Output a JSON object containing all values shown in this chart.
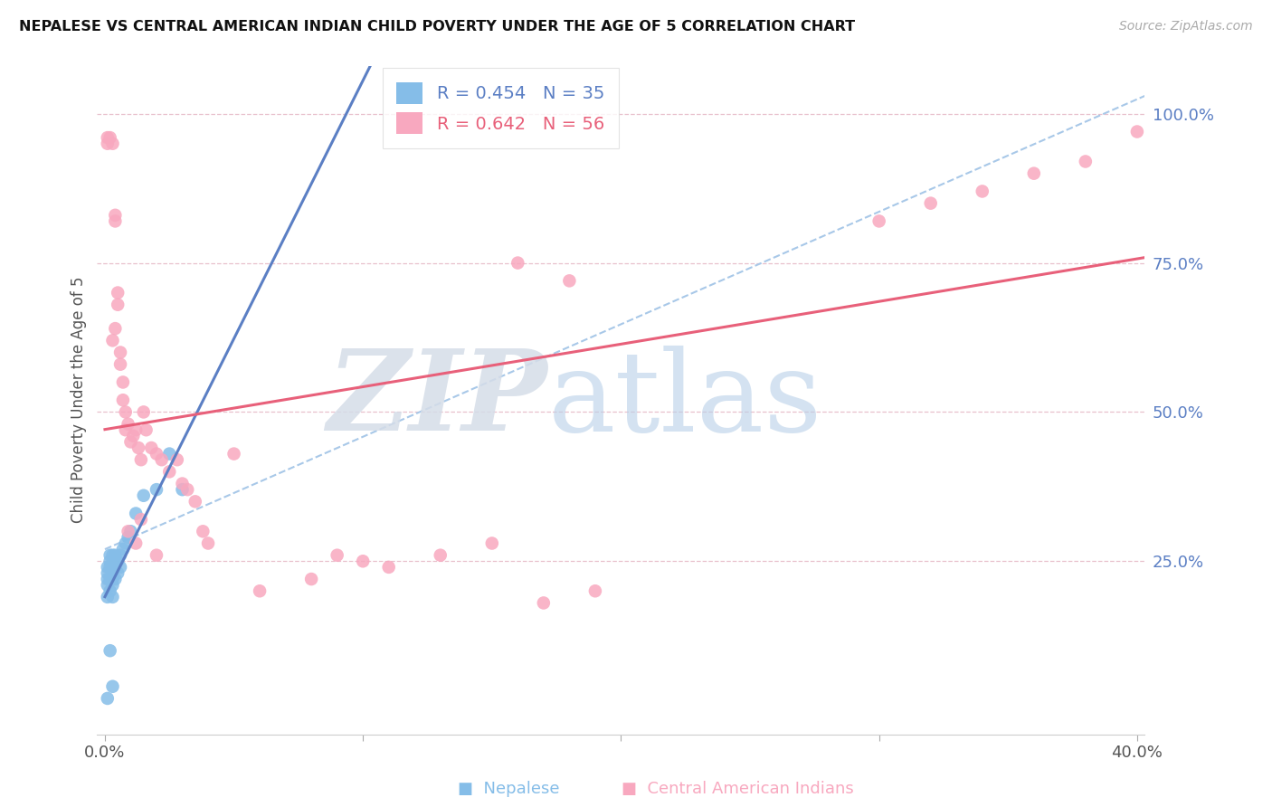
{
  "title": "NEPALESE VS CENTRAL AMERICAN INDIAN CHILD POVERTY UNDER THE AGE OF 5 CORRELATION CHART",
  "source": "Source: ZipAtlas.com",
  "ylabel": "Child Poverty Under the Age of 5",
  "watermark_zip": "ZIP",
  "watermark_atlas": "atlas",
  "xlim": [
    -0.003,
    0.403
  ],
  "ylim": [
    -0.04,
    1.08
  ],
  "legend_blue_r": "R = 0.454",
  "legend_blue_n": "N = 35",
  "legend_pink_r": "R = 0.642",
  "legend_pink_n": "N = 56",
  "blue_color": "#85bde8",
  "pink_color": "#f8a8bf",
  "blue_line_color": "#5b7fc4",
  "pink_line_color": "#e8607a",
  "dashed_line_color": "#a8c8e8",
  "grid_color": "#e8c0cc",
  "background_color": "#ffffff",
  "title_color": "#111111",
  "title_fontsize": 11.5,
  "ytick_color": "#5b7fc4",
  "source_color": "#aaaaaa",
  "nepalese_x": [
    0.001,
    0.001,
    0.001,
    0.001,
    0.001,
    0.002,
    0.002,
    0.002,
    0.002,
    0.002,
    0.003,
    0.003,
    0.003,
    0.003,
    0.003,
    0.003,
    0.004,
    0.004,
    0.004,
    0.005,
    0.005,
    0.006,
    0.006,
    0.007,
    0.008,
    0.009,
    0.01,
    0.012,
    0.015,
    0.02,
    0.025,
    0.03,
    0.001,
    0.002,
    0.003
  ],
  "nepalese_y": [
    0.19,
    0.21,
    0.22,
    0.23,
    0.24,
    0.2,
    0.22,
    0.24,
    0.25,
    0.26,
    0.19,
    0.21,
    0.22,
    0.23,
    0.24,
    0.26,
    0.22,
    0.24,
    0.26,
    0.23,
    0.25,
    0.24,
    0.26,
    0.27,
    0.28,
    0.29,
    0.3,
    0.33,
    0.36,
    0.37,
    0.43,
    0.37,
    0.02,
    0.1,
    0.04
  ],
  "ca_x": [
    0.001,
    0.001,
    0.002,
    0.003,
    0.004,
    0.004,
    0.005,
    0.005,
    0.006,
    0.006,
    0.007,
    0.007,
    0.008,
    0.008,
    0.009,
    0.01,
    0.011,
    0.012,
    0.013,
    0.014,
    0.015,
    0.016,
    0.018,
    0.02,
    0.022,
    0.025,
    0.028,
    0.03,
    0.032,
    0.035,
    0.038,
    0.04,
    0.05,
    0.06,
    0.08,
    0.09,
    0.1,
    0.11,
    0.13,
    0.15,
    0.17,
    0.19,
    0.3,
    0.32,
    0.34,
    0.36,
    0.38,
    0.4,
    0.003,
    0.004,
    0.009,
    0.012,
    0.02,
    0.014,
    0.16,
    0.18
  ],
  "ca_y": [
    0.95,
    0.96,
    0.96,
    0.95,
    0.82,
    0.83,
    0.68,
    0.7,
    0.58,
    0.6,
    0.52,
    0.55,
    0.47,
    0.5,
    0.48,
    0.45,
    0.46,
    0.47,
    0.44,
    0.42,
    0.5,
    0.47,
    0.44,
    0.43,
    0.42,
    0.4,
    0.42,
    0.38,
    0.37,
    0.35,
    0.3,
    0.28,
    0.43,
    0.2,
    0.22,
    0.26,
    0.25,
    0.24,
    0.26,
    0.28,
    0.18,
    0.2,
    0.82,
    0.85,
    0.87,
    0.9,
    0.92,
    0.97,
    0.62,
    0.64,
    0.3,
    0.28,
    0.26,
    0.32,
    0.75,
    0.72
  ]
}
